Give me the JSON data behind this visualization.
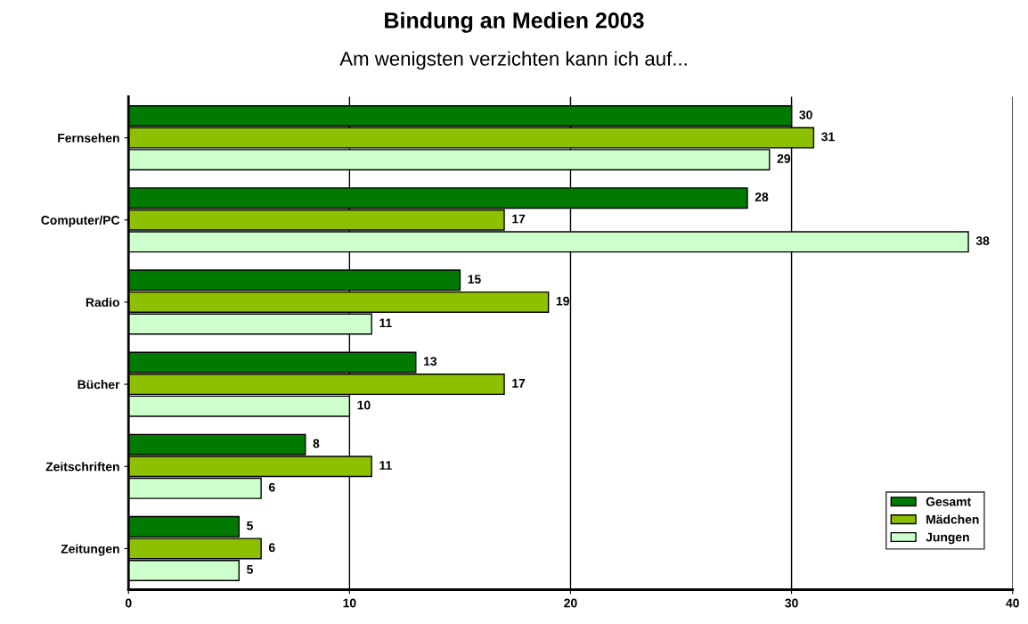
{
  "chart_data": {
    "type": "bar",
    "orientation": "horizontal",
    "title": "Bindung an Medien 2003",
    "subtitle": "Am wenigsten verzichten kann ich auf...",
    "categories": [
      "Fernsehen",
      "Computer/PC",
      "Radio",
      "Bücher",
      "Zeitschriften",
      "Zeitungen"
    ],
    "series": [
      {
        "name": "Gesamt",
        "color": "#007a00",
        "values": [
          30,
          28,
          15,
          13,
          8,
          5
        ]
      },
      {
        "name": "Mädchen",
        "color": "#8cc000",
        "values": [
          31,
          17,
          19,
          17,
          11,
          6
        ]
      },
      {
        "name": "Jungen",
        "color": "#ccffcc",
        "values": [
          29,
          38,
          11,
          10,
          6,
          5
        ]
      }
    ],
    "xlim": [
      0,
      40
    ],
    "xticks": [
      0,
      10,
      20,
      30,
      40
    ],
    "grid": "x",
    "legend": "bottom right",
    "data_labels": true
  }
}
